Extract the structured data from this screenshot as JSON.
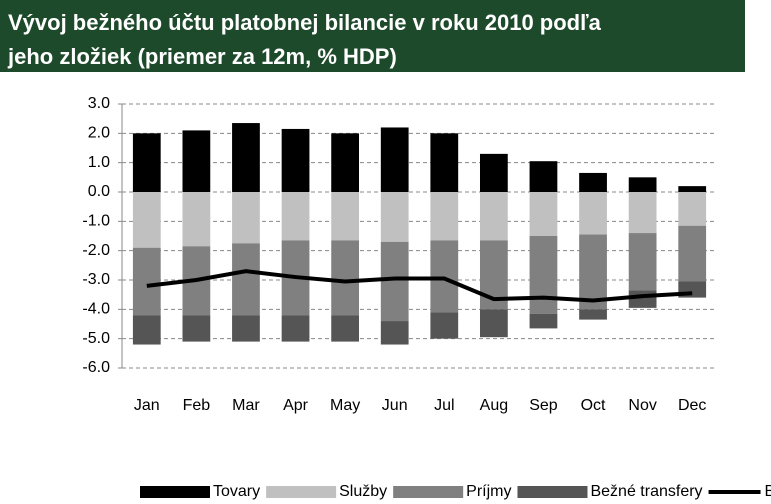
{
  "chart_data": {
    "type": "bar",
    "stacked": true,
    "title": [
      "Vývoj bežného účtu platobnej bilancie v roku 2010 podľa",
      "jeho zložiek (priemer za 12m, % HDP)"
    ],
    "categories": [
      "Jan",
      "Feb",
      "Mar",
      "Apr",
      "May",
      "Jun",
      "Jul",
      "Aug",
      "Sep",
      "Oct",
      "Nov",
      "Dec"
    ],
    "series": [
      {
        "name": "Tovary",
        "color": "#000000",
        "values": [
          2.0,
          2.1,
          2.35,
          2.15,
          2.0,
          2.2,
          2.0,
          1.3,
          1.05,
          0.65,
          0.5,
          0.2
        ]
      },
      {
        "name": "Služby",
        "color": "#c0c0c0",
        "values": [
          -1.9,
          -1.85,
          -1.75,
          -1.65,
          -1.65,
          -1.7,
          -1.65,
          -1.65,
          -1.5,
          -1.45,
          -1.4,
          -1.15
        ]
      },
      {
        "name": "Príjmy",
        "color": "#808080",
        "values": [
          -2.3,
          -2.35,
          -2.45,
          -2.55,
          -2.55,
          -2.7,
          -2.45,
          -2.35,
          -2.65,
          -2.55,
          -1.95,
          -1.9
        ]
      },
      {
        "name": "Bežné transfery",
        "color": "#555555",
        "values": [
          -1.0,
          -0.9,
          -0.9,
          -0.9,
          -0.9,
          -0.8,
          -0.9,
          -0.95,
          -0.5,
          -0.35,
          -0.6,
          -0.55
        ]
      },
      {
        "name": "Bežný účet",
        "color": "#000000",
        "type": "line",
        "values": [
          -3.2,
          -3.0,
          -2.7,
          -2.9,
          -3.05,
          -2.95,
          -2.95,
          -3.65,
          -3.6,
          -3.7,
          -3.55,
          -3.45
        ]
      }
    ],
    "ylim": [
      -6,
      3
    ],
    "yticks": [
      {
        "value": 3,
        "label": "3.0"
      },
      {
        "value": 2,
        "label": "2.0"
      },
      {
        "value": 1,
        "label": "1.0"
      },
      {
        "value": 0,
        "label": "0.0"
      },
      {
        "value": -1,
        "label": "-1.0"
      },
      {
        "value": -2,
        "label": "-2.0"
      },
      {
        "value": -3,
        "label": "-3.0"
      },
      {
        "value": -4,
        "label": "-4.0"
      },
      {
        "value": -5,
        "label": "-5.0"
      },
      {
        "value": -6,
        "label": "-6.0"
      }
    ],
    "grid": true,
    "legend": "bottom"
  }
}
